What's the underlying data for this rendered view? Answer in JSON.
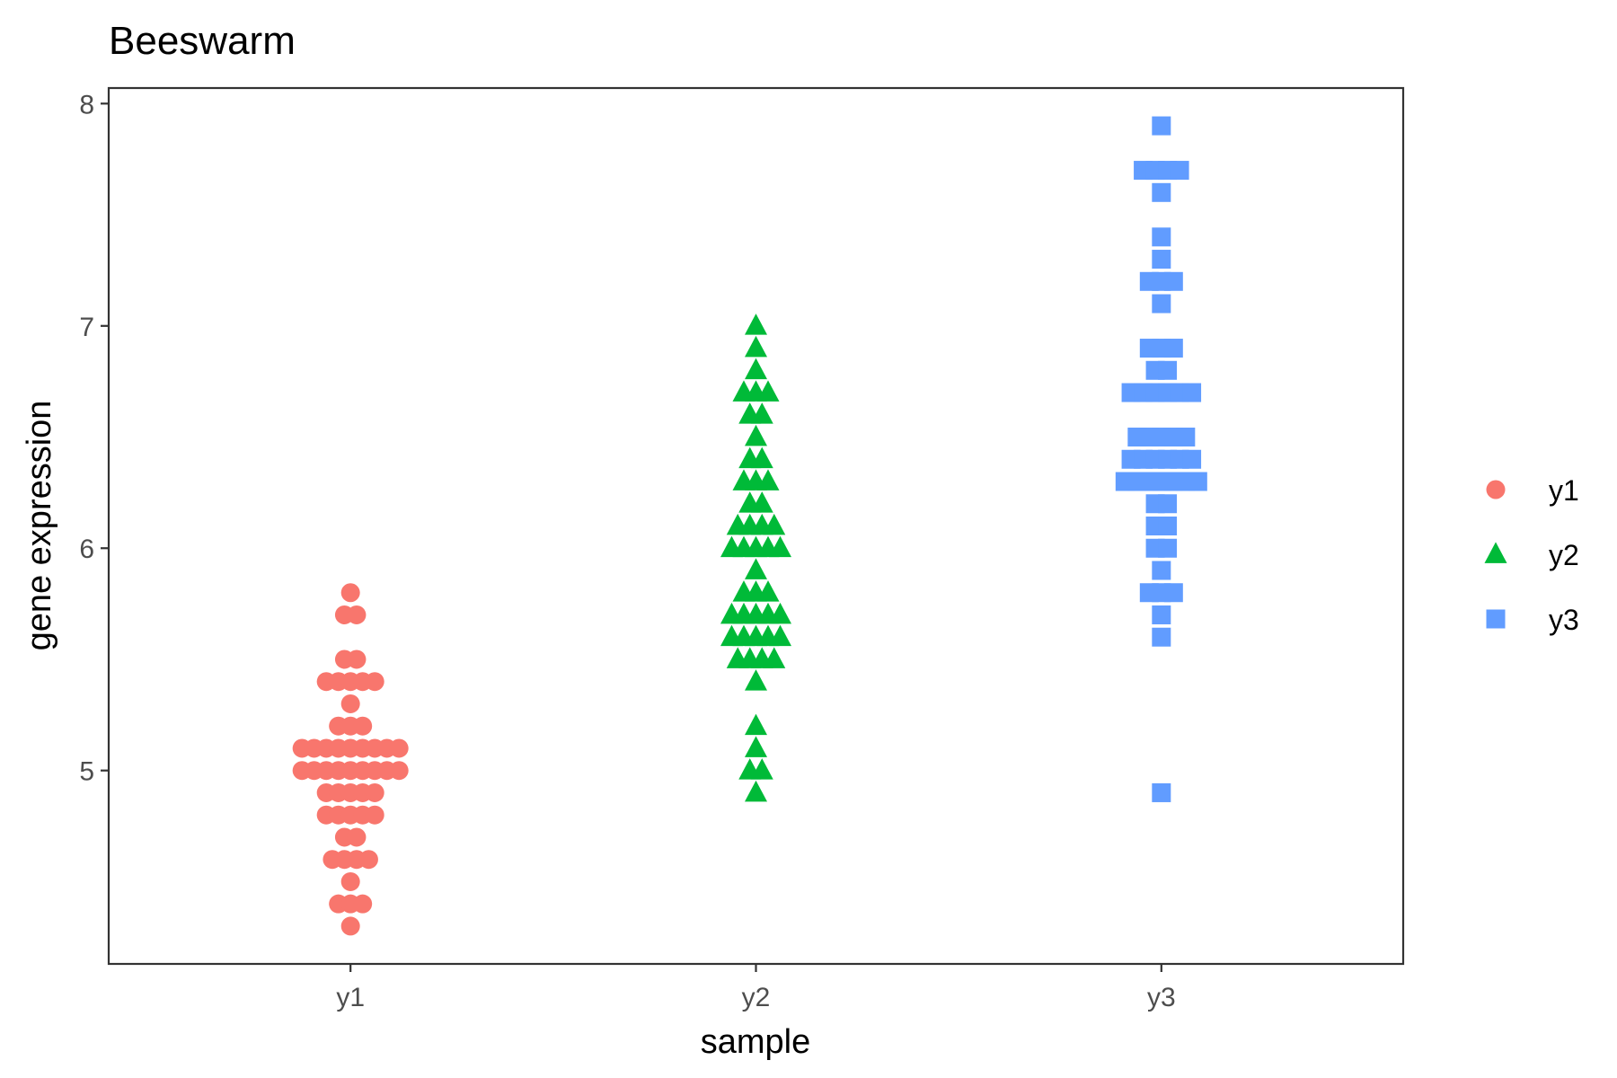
{
  "chart_data": {
    "type": "scatter",
    "subtype": "beeswarm",
    "title": "Beeswarm",
    "xlabel": "sample",
    "ylabel": "gene expression",
    "categories": [
      "y1",
      "y2",
      "y3"
    ],
    "ylim": [
      4.13,
      8.07
    ],
    "yticks": [
      5,
      6,
      7,
      8
    ],
    "ytick_labels": [
      "5",
      "6",
      "7",
      "8"
    ],
    "grid": false,
    "legend_position": "right",
    "series": [
      {
        "name": "y1",
        "category": "y1",
        "shape": "circle",
        "color": "#F8766D",
        "values": [
          4.3,
          4.4,
          4.4,
          4.4,
          4.5,
          4.6,
          4.6,
          4.6,
          4.6,
          4.7,
          4.7,
          4.8,
          4.8,
          4.8,
          4.8,
          4.8,
          4.9,
          4.9,
          4.9,
          4.9,
          4.9,
          5.0,
          5.0,
          5.0,
          5.0,
          5.0,
          5.0,
          5.0,
          5.0,
          5.0,
          5.1,
          5.1,
          5.1,
          5.1,
          5.1,
          5.1,
          5.1,
          5.1,
          5.1,
          5.2,
          5.2,
          5.2,
          5.3,
          5.4,
          5.4,
          5.4,
          5.4,
          5.4,
          5.5,
          5.5,
          5.7,
          5.7,
          5.8
        ]
      },
      {
        "name": "y2",
        "category": "y2",
        "shape": "triangle",
        "color": "#00BA38",
        "values": [
          4.9,
          5.0,
          5.0,
          5.1,
          5.2,
          5.4,
          5.5,
          5.5,
          5.5,
          5.5,
          5.6,
          5.6,
          5.6,
          5.6,
          5.6,
          5.7,
          5.7,
          5.7,
          5.7,
          5.7,
          5.8,
          5.8,
          5.8,
          5.9,
          6.0,
          6.0,
          6.0,
          6.0,
          6.0,
          6.1,
          6.1,
          6.1,
          6.1,
          6.2,
          6.2,
          6.3,
          6.3,
          6.3,
          6.4,
          6.4,
          6.5,
          6.6,
          6.6,
          6.7,
          6.7,
          6.7,
          6.8,
          6.9,
          7.0
        ]
      },
      {
        "name": "y3",
        "category": "y3",
        "shape": "square",
        "color": "#619CFF",
        "values": [
          4.9,
          5.6,
          5.7,
          5.8,
          5.8,
          5.8,
          5.9,
          6.0,
          6.0,
          6.1,
          6.1,
          6.2,
          6.2,
          6.3,
          6.3,
          6.3,
          6.3,
          6.3,
          6.3,
          6.3,
          6.4,
          6.4,
          6.4,
          6.4,
          6.4,
          6.4,
          6.5,
          6.5,
          6.5,
          6.5,
          6.5,
          6.7,
          6.7,
          6.7,
          6.7,
          6.7,
          6.7,
          6.8,
          6.8,
          6.9,
          6.9,
          6.9,
          7.1,
          7.2,
          7.2,
          7.2,
          7.3,
          7.4,
          7.6,
          7.7,
          7.7,
          7.7,
          7.7,
          7.9
        ]
      }
    ]
  }
}
